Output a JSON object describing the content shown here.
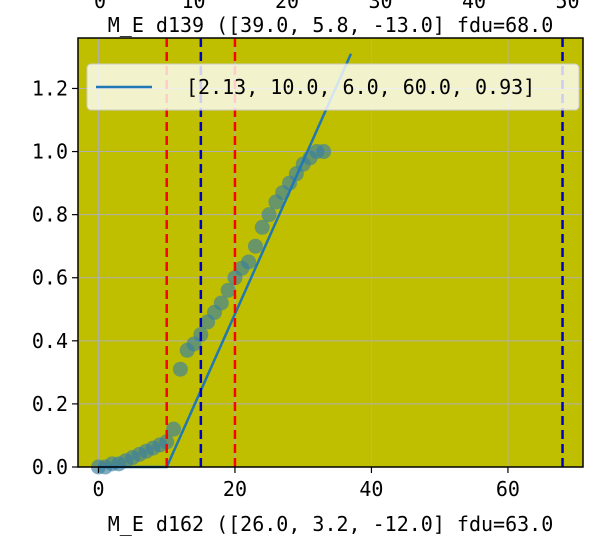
{
  "chart_data": {
    "type": "scatter",
    "top_title": "M_E d139 ([39.0, 5.8, -13.0] fdu=68.0",
    "bottom_title": "M_E d162 ([26.0, 3.2, -12.0] fdu=63.0",
    "top_axis_ticks": [
      "0",
      "10",
      "20",
      "30",
      "40",
      "50"
    ],
    "xlim": [
      -3,
      71
    ],
    "ylim": [
      0,
      1.36
    ],
    "x_ticks": [
      0,
      20,
      40,
      60
    ],
    "y_ticks": [
      0.0,
      0.2,
      0.4,
      0.6,
      0.8,
      1.0,
      1.2
    ],
    "x_tick_labels": [
      "0",
      "20",
      "40",
      "60"
    ],
    "y_tick_labels": [
      "0.0",
      "0.2",
      "0.4",
      "0.6",
      "0.8",
      "1.0",
      "1.2"
    ],
    "grid": true,
    "background_color": "#bfbf00",
    "legend_position": "top",
    "series": [
      {
        "kind": "scatter",
        "color": "#3a7fa0",
        "x": [
          0,
          1,
          2,
          3,
          4,
          5,
          6,
          7,
          8,
          9,
          10,
          11,
          12,
          13,
          14,
          15,
          16,
          17,
          18,
          19,
          20,
          21,
          22,
          23,
          24,
          25,
          26,
          27,
          28,
          29,
          30,
          31,
          32,
          33
        ],
        "y": [
          0.0,
          0.0,
          0.01,
          0.01,
          0.02,
          0.03,
          0.04,
          0.05,
          0.06,
          0.07,
          0.08,
          0.12,
          0.31,
          0.37,
          0.39,
          0.42,
          0.46,
          0.49,
          0.52,
          0.56,
          0.6,
          0.63,
          0.65,
          0.7,
          0.76,
          0.8,
          0.84,
          0.87,
          0.9,
          0.93,
          0.96,
          0.98,
          1.0,
          1.0
        ]
      },
      {
        "kind": "line",
        "name": "[2.13, 10.0, 6.0, 60.0, 0.93]",
        "color": "#1f77b4",
        "x": [
          0,
          10,
          37
        ],
        "y": [
          0,
          0,
          1.31
        ]
      }
    ],
    "vlines": [
      {
        "x": 10,
        "color": "#ff0000"
      },
      {
        "x": 20,
        "color": "#ff0000"
      },
      {
        "x": 15,
        "color": "#0000cc"
      },
      {
        "x": 68,
        "color": "#0000cc"
      }
    ]
  }
}
